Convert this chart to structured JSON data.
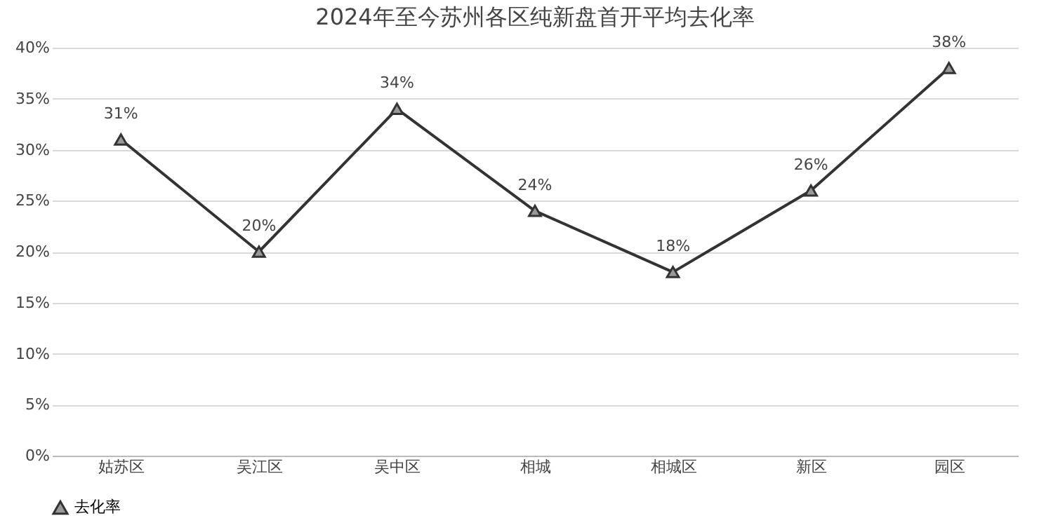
{
  "chart_data": {
    "type": "line",
    "title": "2024年至今苏州各区纯新盘首开平均去化率",
    "categories": [
      "姑苏区",
      "吴江区",
      "吴中区",
      "相城",
      "相城区",
      "新区",
      "园区"
    ],
    "series": [
      {
        "name": "去化率",
        "color": "#333333",
        "values": [
          31,
          20,
          34,
          24,
          18,
          26,
          38
        ],
        "value_labels": [
          "31%",
          "20%",
          "34%",
          "24%",
          "18%",
          "26%",
          "38%"
        ]
      }
    ],
    "ylim": [
      0,
      40
    ],
    "yticks": [
      {
        "value": 0,
        "label": "0%"
      },
      {
        "value": 5,
        "label": "5%"
      },
      {
        "value": 10,
        "label": "10%"
      },
      {
        "value": 15,
        "label": "15%"
      },
      {
        "value": 20,
        "label": "20%"
      },
      {
        "value": 25,
        "label": "25%"
      },
      {
        "value": 30,
        "label": "30%"
      },
      {
        "value": 35,
        "label": "35%"
      },
      {
        "value": 40,
        "label": "40%"
      }
    ],
    "grid": "y",
    "legend": "bottom",
    "marker": "triangle",
    "line_style": "solid"
  }
}
